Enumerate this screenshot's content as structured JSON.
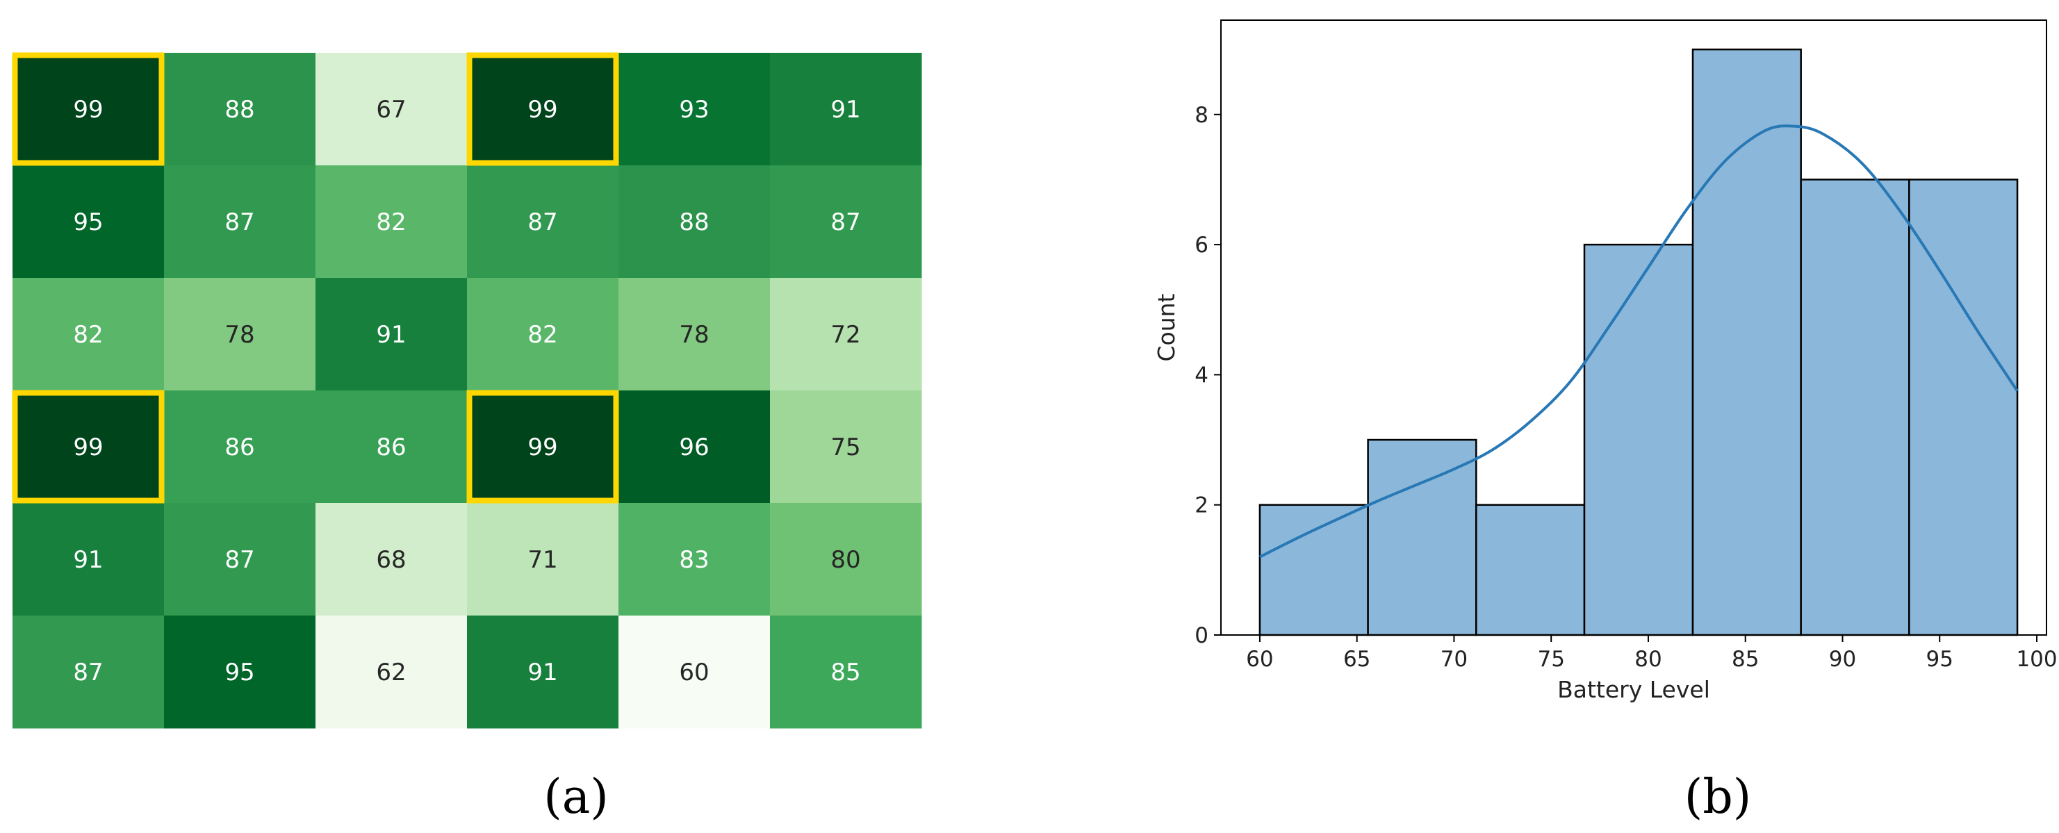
{
  "panels": {
    "a": "(a)",
    "b": "(b)"
  },
  "chart_data": [
    {
      "type": "heatmap",
      "colormap": "Greens",
      "color_range": [
        60,
        99
      ],
      "rows": [
        [
          99,
          88,
          67,
          99,
          93,
          91
        ],
        [
          95,
          87,
          82,
          87,
          88,
          87
        ],
        [
          82,
          78,
          91,
          82,
          78,
          72
        ],
        [
          99,
          86,
          86,
          99,
          96,
          75
        ],
        [
          91,
          87,
          68,
          71,
          83,
          80
        ],
        [
          87,
          95,
          62,
          91,
          60,
          85
        ]
      ],
      "highlighted_cells": [
        [
          0,
          0
        ],
        [
          0,
          3
        ],
        [
          3,
          0
        ],
        [
          3,
          3
        ]
      ],
      "highlight_color": "#FFD700"
    },
    {
      "type": "bar",
      "subtype": "histogram",
      "xlabel": "Battery Level",
      "ylabel": "Count",
      "bins": [
        {
          "start": 60.0,
          "end": 65.57,
          "count": 2
        },
        {
          "start": 65.57,
          "end": 71.14,
          "count": 3
        },
        {
          "start": 71.14,
          "end": 76.71,
          "count": 2
        },
        {
          "start": 76.71,
          "end": 82.29,
          "count": 6
        },
        {
          "start": 82.29,
          "end": 87.86,
          "count": 9
        },
        {
          "start": 87.86,
          "end": 93.43,
          "count": 7
        },
        {
          "start": 93.43,
          "end": 99.0,
          "count": 7
        }
      ],
      "kde": {
        "x": [
          60,
          62,
          64,
          66,
          68,
          70,
          72,
          74,
          76,
          78,
          80,
          82,
          84,
          86,
          87.5,
          89,
          91,
          93,
          95,
          97,
          99
        ],
        "y": [
          1.2,
          1.5,
          1.78,
          2.05,
          2.3,
          2.55,
          2.85,
          3.3,
          3.9,
          4.75,
          5.65,
          6.55,
          7.3,
          7.75,
          7.82,
          7.7,
          7.25,
          6.5,
          5.6,
          4.65,
          3.75
        ]
      },
      "xlim": [
        58,
        100.5
      ],
      "ylim": [
        0,
        9.45
      ],
      "xticks": [
        60,
        65,
        70,
        75,
        80,
        85,
        90,
        95,
        100
      ],
      "yticks": [
        0,
        2,
        4,
        6,
        8
      ],
      "bar_color": "#8BB8DA",
      "line_color": "#2878B5",
      "grid": false
    }
  ]
}
